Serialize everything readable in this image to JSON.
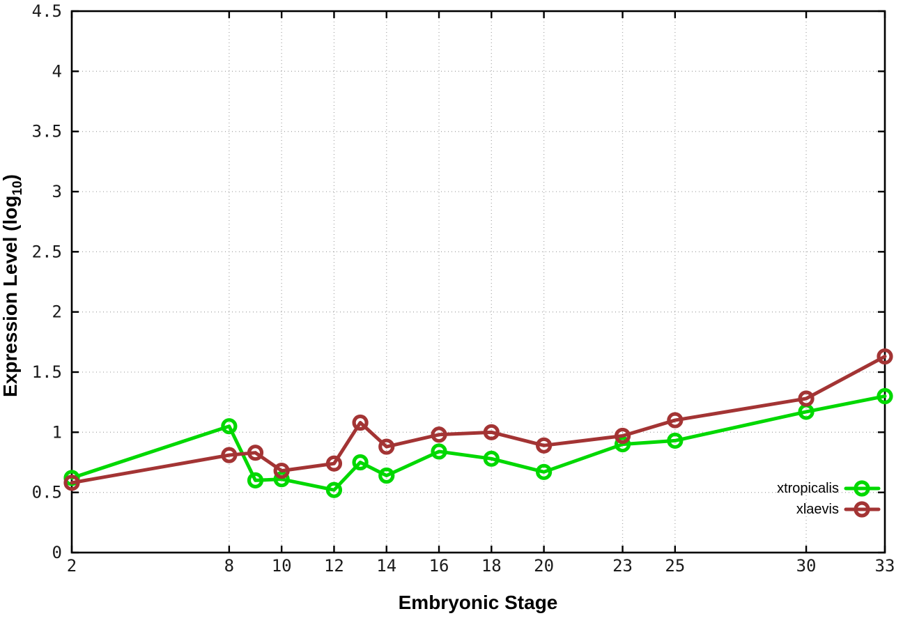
{
  "figure": {
    "xlabel": "Embryonic Stage",
    "ylabel_main": "Expression Level (log",
    "ylabel_sub": "10",
    "ylabel_close": ")"
  },
  "chart_data": {
    "type": "line",
    "title": "",
    "xlabel": "Embryonic Stage",
    "ylabel": "Expression Level (log10)",
    "x": [
      2,
      8,
      9,
      10,
      12,
      13,
      14,
      16,
      18,
      20,
      23,
      25,
      30,
      33
    ],
    "series": [
      {
        "name": "xtropicalis",
        "color": "#00d800",
        "marker": "open-circle",
        "values": [
          0.62,
          1.05,
          0.6,
          0.61,
          0.52,
          0.75,
          0.64,
          0.84,
          0.78,
          0.67,
          0.9,
          0.93,
          1.17,
          1.3
        ]
      },
      {
        "name": "xlaevis",
        "color": "#a33434",
        "marker": "open-circle",
        "values": [
          0.58,
          0.81,
          0.83,
          0.68,
          0.74,
          1.08,
          0.88,
          0.98,
          1.0,
          0.89,
          0.97,
          1.1,
          1.28,
          1.63
        ]
      }
    ],
    "xlim": [
      2,
      33
    ],
    "ylim": [
      0,
      4.5
    ],
    "xticks": [
      2,
      8,
      10,
      12,
      14,
      16,
      18,
      20,
      23,
      25,
      30,
      33
    ],
    "yticks": [
      0,
      0.5,
      1,
      1.5,
      2,
      2.5,
      3,
      3.5,
      4,
      4.5
    ],
    "grid": "dotted",
    "legend_position": "inside-bottom-right"
  }
}
